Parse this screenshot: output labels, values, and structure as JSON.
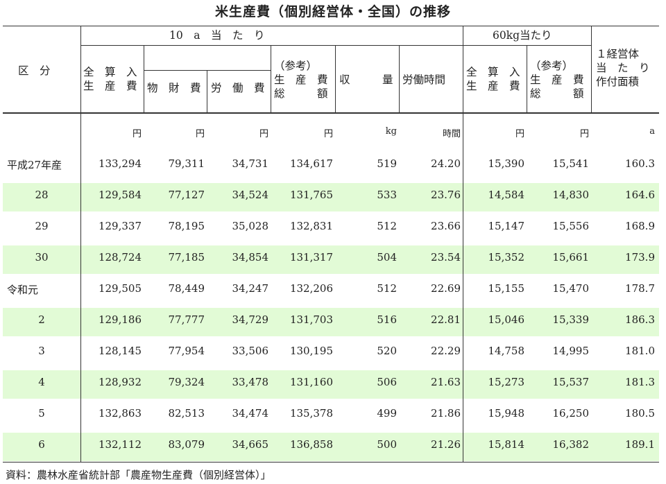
{
  "title": "米生産費（個別経営体・全国）の推移",
  "header": {
    "kubun": "区　分",
    "group_10a": "10　a　当　た　り",
    "group_60kg": "60kg当たり",
    "col_zensan_10a": "全　算　入\n生　産　費",
    "col_busshi": "物　財　費",
    "col_roudou": "労　働　費",
    "col_sankou_10a": "（参考）\n生　産　費\n総　　　額",
    "col_shuuryou": "収　　　量",
    "col_roudou_jikan": "労働時間",
    "col_zensan_60kg": "全　算　入\n生　産　費",
    "col_sankou_60kg": "（参考）\n生　産　費\n総　　　額",
    "col_menseki": "１経営体\n当　た　り\n作付面積"
  },
  "units": [
    "円",
    "円",
    "円",
    "円",
    "kg",
    "時間",
    "円",
    "円",
    "a"
  ],
  "rows": [
    {
      "label": "平成27年産",
      "values": [
        "133,294",
        "79,311",
        "34,731",
        "134,617",
        "519",
        "24.20",
        "15,390",
        "15,541",
        "160.3"
      ],
      "shaded": false
    },
    {
      "label": "28",
      "values": [
        "129,584",
        "77,127",
        "34,524",
        "131,765",
        "533",
        "23.76",
        "14,584",
        "14,830",
        "164.6"
      ],
      "shaded": true
    },
    {
      "label": "29",
      "values": [
        "129,337",
        "78,195",
        "35,028",
        "132,831",
        "512",
        "23.66",
        "15,147",
        "15,556",
        "168.9"
      ],
      "shaded": false
    },
    {
      "label": "30",
      "values": [
        "128,724",
        "77,185",
        "34,854",
        "131,317",
        "504",
        "23.54",
        "15,352",
        "15,661",
        "173.9"
      ],
      "shaded": true
    },
    {
      "label": "令和元",
      "values": [
        "129,505",
        "78,449",
        "34,247",
        "132,206",
        "512",
        "22.69",
        "15,155",
        "15,470",
        "178.7"
      ],
      "shaded": false
    },
    {
      "label": "2",
      "values": [
        "129,186",
        "77,777",
        "34,729",
        "131,703",
        "516",
        "22.81",
        "15,046",
        "15,339",
        "186.3"
      ],
      "shaded": true
    },
    {
      "label": "3",
      "values": [
        "128,145",
        "77,954",
        "33,506",
        "130,195",
        "520",
        "22.29",
        "14,758",
        "14,995",
        "181.0"
      ],
      "shaded": false
    },
    {
      "label": "4",
      "values": [
        "128,932",
        "79,324",
        "33,478",
        "131,160",
        "506",
        "21.63",
        "15,273",
        "15,537",
        "181.3"
      ],
      "shaded": true
    },
    {
      "label": "5",
      "values": [
        "132,863",
        "82,513",
        "34,474",
        "135,378",
        "499",
        "21.86",
        "15,948",
        "16,250",
        "180.5"
      ],
      "shaded": false
    },
    {
      "label": "6",
      "values": [
        "132,112",
        "83,079",
        "34,665",
        "136,858",
        "500",
        "21.26",
        "15,814",
        "16,382",
        "189.1"
      ],
      "shaded": true
    }
  ],
  "source": "資料：農林水産省統計部「農産物生産費（個別経営体）」",
  "colors": {
    "shade": "#e2fbd6",
    "rule": "#333333"
  }
}
